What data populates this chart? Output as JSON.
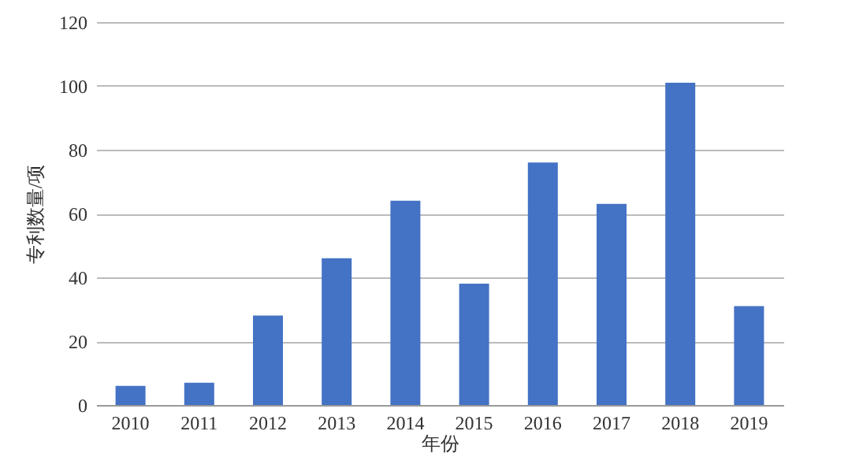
{
  "chart_data": {
    "type": "bar",
    "xlabel": "年份",
    "ylabel": "专利数量/项",
    "categories": [
      "2010",
      "2011",
      "2012",
      "2013",
      "2014",
      "2015",
      "2016",
      "2017",
      "2018",
      "2019"
    ],
    "series": [
      {
        "color": "#4472c4",
        "values": [
          6,
          7,
          28,
          46,
          64,
          38,
          76,
          63,
          101,
          31
        ]
      }
    ],
    "ylim": [
      0,
      120
    ],
    "yticks": [
      0,
      20,
      40,
      60,
      80,
      100,
      120
    ],
    "grid": "y"
  }
}
